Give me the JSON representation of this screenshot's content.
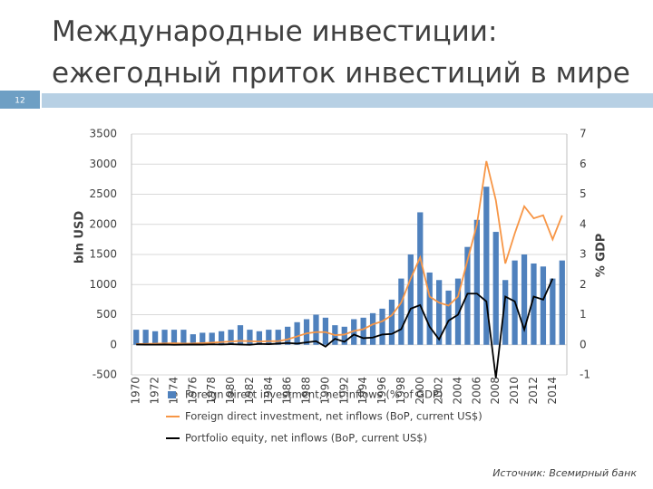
{
  "slide_number": "12",
  "title_lines": [
    "Международные инвестиции:",
    "ежегодный приток инвестиций в мире"
  ],
  "source": "Источник: Всемирный банк",
  "chart_data": {
    "type": "combo",
    "ylabel": "bln USD",
    "y2label": "% GDP",
    "categories": [
      "1970",
      null,
      "1972",
      null,
      "1974",
      null,
      "1976",
      null,
      "1978",
      null,
      "1980",
      null,
      "1982",
      null,
      "1984",
      null,
      "1986",
      null,
      "1988",
      null,
      "1990",
      null,
      "1992",
      null,
      "1994",
      null,
      "1996",
      null,
      "1998",
      null,
      "2000",
      null,
      "2002",
      null,
      "2004",
      null,
      "2006",
      null,
      "2008",
      null,
      "2010",
      null,
      "2012",
      null,
      "2014",
      null
    ],
    "ylim": [
      -500,
      3500
    ],
    "yticks": [
      -500,
      0,
      500,
      1000,
      1500,
      2000,
      2500,
      3000,
      3500
    ],
    "y2lim": [
      -1,
      7
    ],
    "y2ticks": [
      -1,
      0,
      1,
      2,
      3,
      4,
      5,
      6,
      7
    ],
    "grid": true,
    "series": [
      {
        "name": "Foreign direct investment, net inflows (% of GDP)",
        "type": "bar",
        "axis": "y2",
        "color": "#4f81bd",
        "values": [
          0.5,
          0.5,
          0.45,
          0.5,
          0.5,
          0.5,
          0.35,
          0.4,
          0.4,
          0.45,
          0.5,
          0.65,
          0.5,
          0.45,
          0.5,
          0.5,
          0.6,
          0.75,
          0.85,
          1.0,
          0.9,
          0.65,
          0.6,
          0.85,
          0.9,
          1.05,
          1.2,
          1.5,
          2.2,
          3.0,
          4.4,
          2.4,
          2.15,
          1.8,
          2.2,
          3.25,
          4.15,
          5.25,
          3.75,
          2.15,
          2.8,
          3.0,
          2.7,
          2.6,
          2.2,
          2.8
        ]
      },
      {
        "name": "Foreign direct investment, net inflows (BoP, current US$)",
        "type": "line",
        "color": "#f79646",
        "values": [
          12,
          15,
          18,
          22,
          25,
          20,
          22,
          28,
          35,
          45,
          55,
          65,
          60,
          55,
          60,
          60,
          90,
          140,
          190,
          210,
          210,
          160,
          170,
          230,
          260,
          340,
          390,
          490,
          700,
          1100,
          1450,
          800,
          700,
          650,
          800,
          1400,
          2000,
          3050,
          2400,
          1350,
          1850,
          2300,
          2100,
          2150,
          1750,
          2150
        ]
      },
      {
        "name": "Portfolio equity, net inflows (BoP, current US$)",
        "type": "line",
        "color": "#000000",
        "values": [
          5,
          3,
          2,
          5,
          0,
          3,
          5,
          3,
          8,
          5,
          10,
          5,
          0,
          15,
          10,
          20,
          30,
          20,
          40,
          60,
          -30,
          100,
          50,
          170,
          110,
          120,
          170,
          180,
          260,
          600,
          660,
          300,
          90,
          400,
          500,
          850,
          850,
          720,
          -550,
          800,
          720,
          250,
          800,
          750,
          1100,
          null
        ]
      }
    ]
  }
}
